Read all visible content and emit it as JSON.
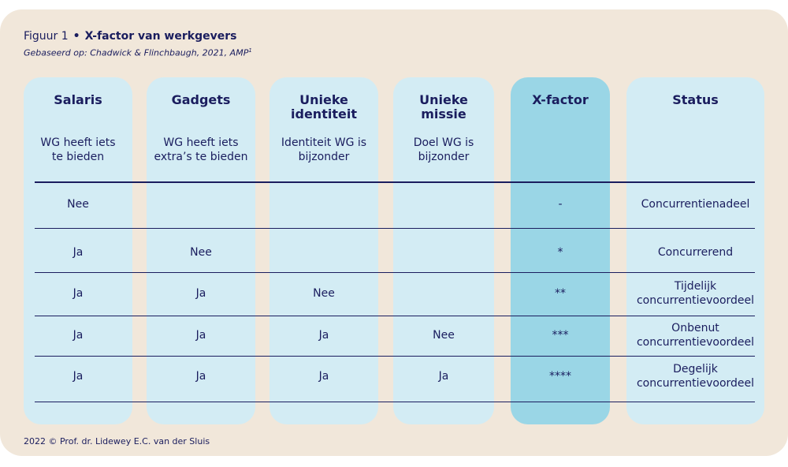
{
  "figure": {
    "label": "Figuur 1",
    "bullet": "•",
    "title": "X-factor van werkgevers",
    "subtitle": "Gebaseerd op: Chadwick & Flinchbaugh, 2021, AMP",
    "subtitle_sup": "1"
  },
  "columns": [
    {
      "header": "Salaris",
      "description": "WG heeft iets\nte bieden"
    },
    {
      "header": "Gadgets",
      "description": "WG heeft iets\nextra’s te bieden"
    },
    {
      "header": "Unieke\nidentiteit",
      "description": "Identiteit WG is\nbijzonder"
    },
    {
      "header": "Unieke\nmissie",
      "description": "Doel WG is\nbijzonder"
    },
    {
      "header": "X-factor",
      "description": ""
    },
    {
      "header": "Status",
      "description": ""
    }
  ],
  "rows": [
    [
      "Nee",
      "",
      "",
      "",
      "-",
      "Concurrentienadeel"
    ],
    [
      "Ja",
      "Nee",
      "",
      "",
      "*",
      "Concurrerend"
    ],
    [
      "Ja",
      "Ja",
      "Nee",
      "",
      "**",
      "Tijdelijk\nconcurrentievoordeel"
    ],
    [
      "Ja",
      "Ja",
      "Ja",
      "Nee",
      "***",
      "Onbenut\nconcurrentievoordeel"
    ],
    [
      "Ja",
      "Ja",
      "Ja",
      "Ja",
      "****",
      "Degelijk\nconcurrentievoordeel"
    ]
  ],
  "footer": "2022 © Prof. dr. Lidewey E.C. van der Sluis",
  "colors": {
    "background": "#f1e7da",
    "column": "#d3ecf4",
    "highlight": "#9ad6e6",
    "text": "#1a1d5e"
  }
}
